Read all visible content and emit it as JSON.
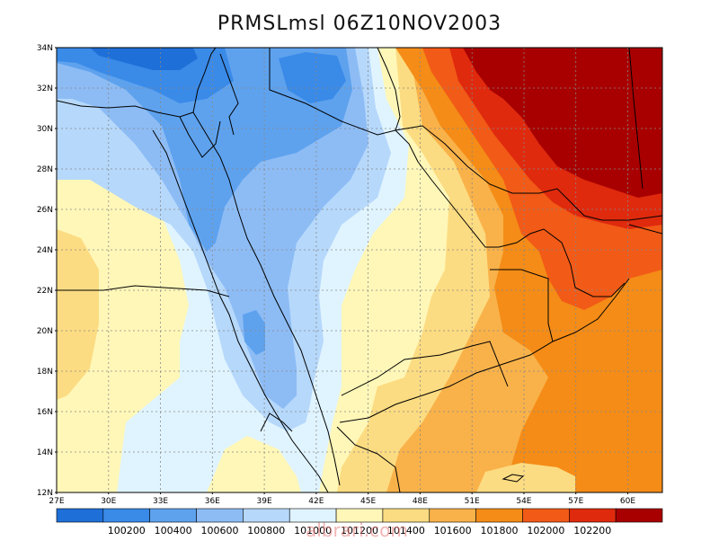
{
  "map": {
    "title": "PRMSLmsl 06Z10NOV2003",
    "lat_ticks": [
      "34N",
      "32N",
      "30N",
      "28N",
      "26N",
      "24N",
      "22N",
      "20N",
      "18N",
      "16N",
      "14N",
      "12N"
    ],
    "lon_ticks": [
      "27E",
      "30E",
      "33E",
      "36E",
      "39E",
      "42E",
      "45E",
      "48E",
      "51E",
      "54E",
      "57E",
      "60E"
    ],
    "extent": {
      "lon_min": 27,
      "lon_max": 62,
      "lat_min": 12,
      "lat_max": 34
    },
    "colorbar": {
      "labels": [
        "100200",
        "100400",
        "100600",
        "100800",
        "101000",
        "101200",
        "101400",
        "101600",
        "101800",
        "102000",
        "102200"
      ],
      "colors": [
        "#1f6fd8",
        "#3a8ae8",
        "#5ea2ee",
        "#8dbcf5",
        "#b6d8fb",
        "#e0f4ff",
        "#fff7b8",
        "#fcdc82",
        "#f9b24a",
        "#f48c17",
        "#f25a17",
        "#df2a0e",
        "#a80000"
      ]
    },
    "watermark": "albrari.com"
  }
}
